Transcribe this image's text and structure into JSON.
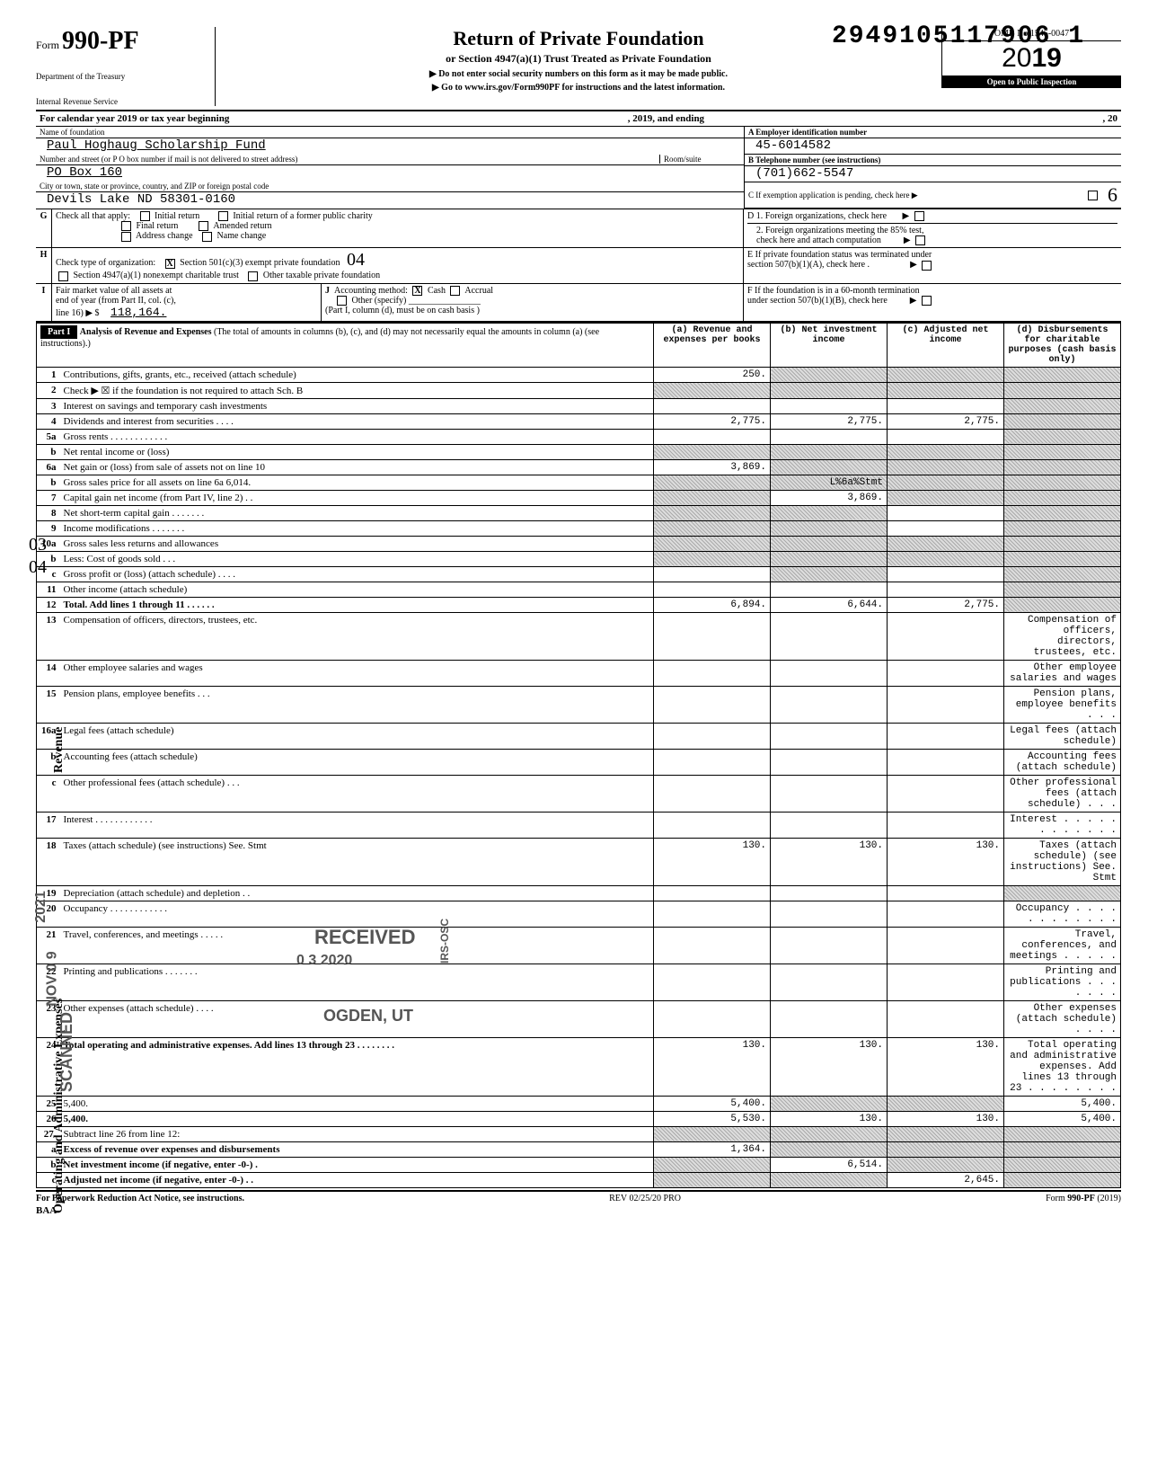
{
  "dln": "2949105117906 1",
  "form": {
    "prefix": "Form",
    "number": "990-PF"
  },
  "dept_lines": [
    "Department of the Treasury",
    "Internal Revenue Service"
  ],
  "header": {
    "title": "Return of Private Foundation",
    "subtitle": "or Section 4947(a)(1) Trust Treated as Private Foundation",
    "warn": "▶ Do not enter social security numbers on this form as it may be made public.",
    "goto": "▶ Go to www.irs.gov/Form990PF for instructions and the latest information."
  },
  "rightbox": {
    "omb": "OMB No 1545-0047",
    "year_prefix": "20",
    "year_bold": "19",
    "inspect": "Open to Public Inspection"
  },
  "cal": {
    "lead": "For calendar year 2019 or tax year beginning",
    "mid": ", 2019, and ending",
    "end": ", 20"
  },
  "name_label": "Name of foundation",
  "foundation_name": "Paul Hoghaug Scholarship Fund",
  "addr_label": "Number and street (or P O box number if mail is not delivered to street address)",
  "room_label": "Room/suite",
  "addr": "PO Box 160",
  "city_label": "City or town, state or province, country, and ZIP or foreign postal code",
  "city": "Devils Lake ND 58301-0160",
  "boxA_label": "A  Employer identification number",
  "ein": "45-6014582",
  "boxB_label": "B  Telephone number (see instructions)",
  "phone": "(701)662-5547",
  "boxC": "C  If exemption application is pending, check here ▶",
  "boxD1": "D  1. Foreign organizations, check here",
  "boxD2a": "2. Foreign organizations meeting the 85% test,",
  "boxD2b": "check here and attach computation",
  "boxE1": "E  If private foundation status was terminated under",
  "boxE2": "section 507(b)(1)(A), check here .",
  "boxF1": "F  If the foundation is in a 60-month termination",
  "boxF2": "under section 507(b)(1)(B), check here",
  "G": {
    "lead": "Check all that apply:",
    "opts": [
      "Initial return",
      "Final return",
      "Address change",
      "Initial return of a former public charity",
      "Amended return",
      "Name change"
    ]
  },
  "H": {
    "lead": "Check type of organization:",
    "o1": "Section 501(c)(3) exempt private foundation",
    "o2": "Section 4947(a)(1) nonexempt charitable trust",
    "o3": "Other taxable private foundation"
  },
  "I": {
    "l1": "Fair market value of all assets at",
    "l2": "end of year (from Part II, col. (c),",
    "l3": "line 16) ▶ $",
    "val": "118,164."
  },
  "J": {
    "lead": "Accounting method:",
    "cash": "Cash",
    "accrual": "Accrual",
    "other": "Other (specify)",
    "note": "(Part I, column (d), must be on cash basis )"
  },
  "part1": {
    "label": "Part I",
    "title": "Analysis of Revenue and Expenses",
    "paren": "(The total of amounts in columns (b), (c), and (d) may not necessarily equal the amounts in column (a) (see instructions).)",
    "cols": {
      "a": "(a) Revenue and expenses per books",
      "b": "(b) Net investment income",
      "c": "(c) Adjusted net income",
      "d": "(d) Disbursements for charitable purposes (cash basis only)"
    }
  },
  "rows": [
    {
      "n": "1",
      "d": "Contributions, gifts, grants, etc., received (attach schedule)",
      "a": "250.",
      "b_sh": true,
      "c_sh": true,
      "d_sh": true
    },
    {
      "n": "2",
      "d": "Check ▶ ☒ if the foundation is not required to attach Sch. B",
      "a_sh": true,
      "b_sh": true,
      "c_sh": true,
      "d_sh": true
    },
    {
      "n": "3",
      "d": "Interest on savings and temporary cash investments",
      "d_sh": true
    },
    {
      "n": "4",
      "d": "Dividends and interest from securities  .   .   .   .",
      "a": "2,775.",
      "b": "2,775.",
      "c": "2,775.",
      "d_sh": true
    },
    {
      "n": "5a",
      "d": "Gross rents .   .   .   .   .   .   .   .   .   .   .   .",
      "d_sh": true
    },
    {
      "n": "b",
      "d": "Net rental income or (loss)",
      "a_sh": true,
      "b_sh": true,
      "c_sh": true,
      "d_sh": true
    },
    {
      "n": "6a",
      "d": "Net gain or (loss) from sale of assets not on line 10",
      "a": "3,869.",
      "b_sh": true,
      "c_sh": true,
      "d_sh": true
    },
    {
      "n": "b",
      "d": "Gross sales price for all assets on line 6a        6,014.",
      "a_sh": true,
      "b_sh": "L%6a%Stmt",
      "c_sh": true,
      "d_sh": true
    },
    {
      "n": "7",
      "d": "Capital gain net income (from Part IV, line 2)  .   .",
      "a_sh": true,
      "b": "3,869.",
      "c_sh": true,
      "d_sh": true
    },
    {
      "n": "8",
      "d": "Net short-term capital gain .   .   .   .   .   .   .",
      "a_sh": true,
      "b_sh": true,
      "d_sh": true
    },
    {
      "n": "9",
      "d": "Income modifications       .   .   .   .   .   .   .",
      "a_sh": true,
      "b_sh": true,
      "d_sh": true
    },
    {
      "n": "10a",
      "d": "Gross sales less returns and allowances",
      "a_sh": true,
      "b_sh": true,
      "c_sh": true,
      "d_sh": true
    },
    {
      "n": "b",
      "d": "Less: Cost of goods sold   .   .   .",
      "a_sh": true,
      "b_sh": true,
      "c_sh": true,
      "d_sh": true
    },
    {
      "n": "c",
      "d": "Gross profit or (loss) (attach schedule)  .   .   .   .",
      "b_sh": true,
      "d_sh": true
    },
    {
      "n": "11",
      "d": "Other income (attach schedule)",
      "d_sh": true
    },
    {
      "n": "12",
      "d": "Total. Add lines 1 through 11  .   .   .   .   .   .",
      "bold": true,
      "a": "6,894.",
      "b": "6,644.",
      "c": "2,775.",
      "d_sh": true
    },
    {
      "n": "13",
      "d": "Compensation of officers, directors, trustees, etc."
    },
    {
      "n": "14",
      "d": "Other employee salaries and wages"
    },
    {
      "n": "15",
      "d": "Pension plans, employee benefits   .   .   ."
    },
    {
      "n": "16a",
      "d": "Legal fees (attach schedule)"
    },
    {
      "n": "b",
      "d": "Accounting fees (attach schedule)"
    },
    {
      "n": "c",
      "d": "Other professional fees (attach schedule)  .   .   ."
    },
    {
      "n": "17",
      "d": "Interest   .   .   .   .   .   .   .   .   .   .   .   ."
    },
    {
      "n": "18",
      "d": "Taxes (attach schedule) (see instructions) See. Stmt",
      "a": "130.",
      "b": "130.",
      "c": "130."
    },
    {
      "n": "19",
      "d": "Depreciation (attach schedule) and depletion .   .",
      "d_sh": true
    },
    {
      "n": "20",
      "d": "Occupancy .   .   .   .   .   .   .   .   .   .   .   ."
    },
    {
      "n": "21",
      "d": "Travel, conferences, and meetings   .   .   .   .   ."
    },
    {
      "n": "22",
      "d": "Printing and publications    .   .   .   .   .   .   ."
    },
    {
      "n": "23",
      "d": "Other expenses (attach schedule)   .   .   .   ."
    },
    {
      "n": "24",
      "d": "Total operating and administrative expenses. Add lines 13 through 23 .   .   .   .   .   .   .   .",
      "bold": true,
      "a": "130.",
      "b": "130.",
      "c": "130."
    },
    {
      "n": "25",
      "d": "5,400.",
      "a": "5,400.",
      "b_sh": true,
      "c_sh": true
    },
    {
      "n": "26",
      "d": "5,400.",
      "bold": true,
      "a": "5,530.",
      "b": "130.",
      "c": "130."
    },
    {
      "n": "27.",
      "d": "Subtract line 26 from line 12:",
      "a_sh": true,
      "b_sh": true,
      "c_sh": true,
      "d_sh": true
    },
    {
      "n": "a",
      "d": "Excess of revenue over expenses and disbursements",
      "bold": true,
      "a": "1,364.",
      "b_sh": true,
      "c_sh": true,
      "d_sh": true
    },
    {
      "n": "b",
      "d": "Net investment income (if negative, enter -0-)  .",
      "bold": true,
      "a_sh": true,
      "b": "6,514.",
      "c_sh": true,
      "d_sh": true
    },
    {
      "n": "c",
      "d": "Adjusted net income (if negative, enter -0-)  .   .",
      "bold": true,
      "a_sh": true,
      "b_sh": true,
      "c": "2,645.",
      "d_sh": true
    }
  ],
  "footer": {
    "left": "For Paperwork Reduction Act Notice, see instructions.",
    "mid": "REV 02/25/20 PRO",
    "right": "Form 990-PF (2019)",
    "baa": "BAA"
  },
  "stamps": {
    "received": "RECEIVED",
    "date": "0 3 2020",
    "irs": "IRS-OSC",
    "ogden": "OGDEN, UT",
    "scanned": "SCANNED",
    "y2021": "2021",
    "nov": "NOV 0 9"
  },
  "marginal": {
    "l03": "03",
    "l04": "04",
    "l6": "6",
    "hw04": "04"
  }
}
